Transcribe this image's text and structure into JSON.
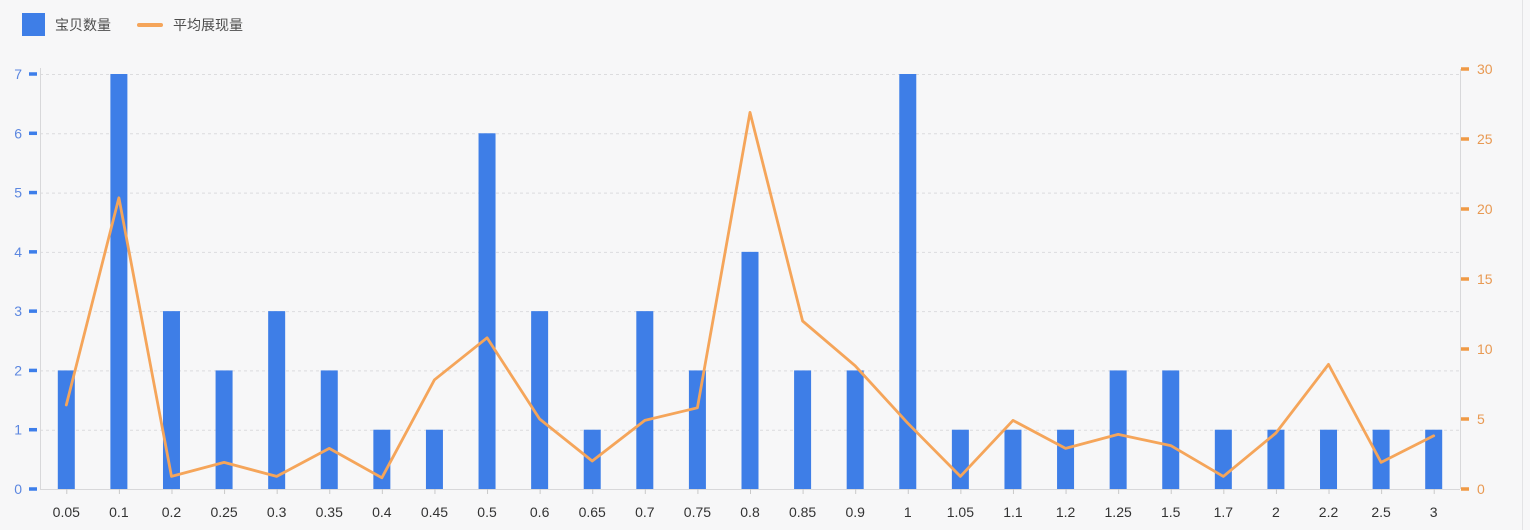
{
  "legend": {
    "items": [
      {
        "label": "宝贝数量",
        "marker": "bar-swatch",
        "color": "#3e7ee7"
      },
      {
        "label": "平均展现量",
        "marker": "line-swatch",
        "color": "#f5a55a"
      }
    ]
  },
  "chart_data": {
    "type": "bar+line",
    "title": "",
    "legend_position": "top-left",
    "grid": "horizontal dashed gridlines from left axis",
    "categories": [
      "0.05",
      "0.1",
      "0.2",
      "0.25",
      "0.3",
      "0.35",
      "0.4",
      "0.45",
      "0.5",
      "0.6",
      "0.65",
      "0.7",
      "0.75",
      "0.8",
      "0.85",
      "0.9",
      "1",
      "1.05",
      "1.1",
      "1.2",
      "1.25",
      "1.5",
      "1.7",
      "2",
      "2.2",
      "2.5",
      "3"
    ],
    "series": [
      {
        "name": "宝贝数量",
        "type": "bar",
        "axis": "left",
        "color": "#3e7ee7",
        "values": [
          2,
          7,
          3,
          2,
          3,
          2,
          1,
          1,
          6,
          3,
          1,
          3,
          2,
          4,
          2,
          2,
          7,
          1,
          1,
          1,
          2,
          2,
          1,
          1,
          1,
          1,
          1
        ]
      },
      {
        "name": "平均展现量",
        "type": "line",
        "axis": "right",
        "color": "#f5a55a",
        "values": [
          6,
          20.8,
          0.9,
          1.9,
          0.9,
          2.9,
          0.8,
          7.8,
          10.8,
          5,
          2,
          4.9,
          5.8,
          26.9,
          12,
          8.8,
          4.7,
          0.9,
          4.9,
          2.9,
          3.9,
          3.1,
          0.9,
          4,
          8.9,
          1.9,
          3.8
        ]
      }
    ],
    "left_axis": {
      "min": 0,
      "max": 7,
      "ticks": [
        0,
        1,
        2,
        3,
        4,
        5,
        6,
        7
      ],
      "label_color": "#5c87e0",
      "tick_color": "#3d7eea"
    },
    "right_axis": {
      "min": 0,
      "max": 30,
      "ticks": [
        0,
        5,
        10,
        15,
        20,
        25,
        30
      ],
      "label_color": "#e89952",
      "tick_color": "#f09a45"
    },
    "x_axis": {
      "label_color": "#333333",
      "tick_color": "#c9c9c9"
    },
    "colors": {
      "background": "#f7f7f8",
      "axis_line": "#d8d8da",
      "gridline": "#dcdcde",
      "legend_text": "#4d4d4d"
    }
  }
}
